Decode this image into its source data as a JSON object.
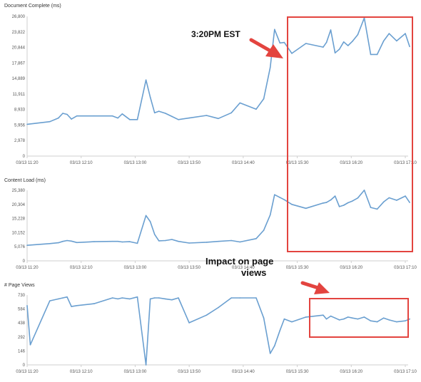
{
  "accent_color": "#6a9fd0",
  "highlight_color": "#e3443f",
  "annotations": {
    "time_callout": "3:20PM EST",
    "impact_callout_line1": "Impact on page",
    "impact_callout_line2": "views"
  },
  "chart_data": [
    {
      "type": "line",
      "title": "Document Complete (ms)",
      "x_ticks": [
        "03/13 11:20",
        "03/13 12:10",
        "03/13 13:00",
        "03/13 13:50",
        "03/13 14:40",
        "03/13 15:30",
        "03/13 16:20",
        "03/13 17:10"
      ],
      "y_ticks": [
        "0",
        "2,978",
        "5,956",
        "8,933",
        "11,911",
        "14,889",
        "17,867",
        "20,844",
        "23,822",
        "26,800"
      ],
      "ylim": [
        0,
        26800
      ],
      "grid": false,
      "x": [
        "11:20",
        "11:41",
        "11:49",
        "11:53",
        "11:57",
        "12:01",
        "12:06",
        "12:22",
        "12:39",
        "12:44",
        "12:48",
        "12:55",
        "13:02",
        "13:10",
        "13:14",
        "13:18",
        "13:22",
        "13:28",
        "13:34",
        "13:40",
        "13:50",
        "14:06",
        "14:17",
        "14:29",
        "14:37",
        "14:52",
        "14:59",
        "15:05",
        "15:09",
        "15:14",
        "15:18",
        "15:25",
        "15:38",
        "15:54",
        "15:57",
        "16:01",
        "16:05",
        "16:09",
        "16:13",
        "16:17",
        "16:21",
        "16:26",
        "16:32",
        "16:38",
        "16:44",
        "16:50",
        "16:55",
        "17:02",
        "17:10",
        "17:14"
      ],
      "values": [
        6100,
        6600,
        7300,
        8200,
        8000,
        7100,
        7700,
        7700,
        7700,
        7300,
        8100,
        7000,
        7000,
        14600,
        11300,
        8300,
        8600,
        8200,
        7600,
        7000,
        7300,
        7800,
        7200,
        8300,
        10200,
        9000,
        11000,
        17000,
        24300,
        21700,
        21800,
        19700,
        21600,
        20900,
        21800,
        24200,
        19800,
        20500,
        21900,
        21200,
        22000,
        23300,
        26500,
        19500,
        19500,
        22100,
        23500,
        22100,
        23500,
        21000
      ]
    },
    {
      "type": "line",
      "title": "Content Load (ms)",
      "x_ticks": [
        "03/13 11:20",
        "03/13 12:10",
        "03/13 13:00",
        "03/13 13:50",
        "03/13 14:40",
        "03/13 15:30",
        "03/13 16:20",
        "03/13 17:10"
      ],
      "y_ticks": [
        "0",
        "5,076",
        "10,152",
        "15,228",
        "20,304",
        "25,380"
      ],
      "ylim": [
        0,
        25380
      ],
      "grid": false,
      "x": [
        "11:20",
        "11:41",
        "11:49",
        "11:53",
        "11:57",
        "12:01",
        "12:06",
        "12:22",
        "12:39",
        "12:44",
        "12:48",
        "12:55",
        "13:02",
        "13:10",
        "13:14",
        "13:18",
        "13:22",
        "13:28",
        "13:34",
        "13:40",
        "13:50",
        "14:06",
        "14:17",
        "14:29",
        "14:37",
        "14:52",
        "14:59",
        "15:05",
        "15:09",
        "15:14",
        "15:18",
        "15:25",
        "15:38",
        "15:54",
        "15:57",
        "16:01",
        "16:05",
        "16:09",
        "16:13",
        "16:17",
        "16:21",
        "16:26",
        "16:32",
        "16:38",
        "16:44",
        "16:50",
        "16:55",
        "17:02",
        "17:10",
        "17:14"
      ],
      "values": [
        5600,
        6200,
        6500,
        7000,
        7300,
        7100,
        6600,
        6900,
        7000,
        7000,
        6800,
        6900,
        6300,
        16300,
        14100,
        9500,
        7200,
        7300,
        7700,
        7000,
        6400,
        6700,
        7000,
        7300,
        6800,
        8000,
        11000,
        16500,
        23800,
        22800,
        22000,
        20300,
        18900,
        20800,
        21000,
        21900,
        23300,
        19500,
        20000,
        20900,
        21500,
        22600,
        25400,
        19200,
        18600,
        21200,
        22700,
        21800,
        23300,
        21000
      ]
    },
    {
      "type": "line",
      "title": "# Page Views",
      "x_ticks": [
        "03/13 11:20",
        "03/13 12:10",
        "03/13 13:00",
        "03/13 13:50",
        "03/13 14:40",
        "03/13 15:30",
        "03/13 16:20",
        "03/13 17:10"
      ],
      "y_ticks": [
        "0",
        "146",
        "292",
        "438",
        "584",
        "730"
      ],
      "ylim": [
        0,
        730
      ],
      "grid": false,
      "x": [
        "11:20",
        "11:23",
        "11:41",
        "11:49",
        "11:53",
        "11:57",
        "12:01",
        "12:06",
        "12:22",
        "12:39",
        "12:44",
        "12:48",
        "12:55",
        "13:02",
        "13:10",
        "13:14",
        "13:18",
        "13:22",
        "13:28",
        "13:34",
        "13:40",
        "13:50",
        "14:06",
        "14:17",
        "14:29",
        "14:37",
        "14:52",
        "14:59",
        "15:05",
        "15:09",
        "15:14",
        "15:18",
        "15:25",
        "15:38",
        "15:54",
        "15:57",
        "16:01",
        "16:05",
        "16:09",
        "16:13",
        "16:17",
        "16:21",
        "16:26",
        "16:32",
        "16:38",
        "16:44",
        "16:50",
        "16:55",
        "17:02",
        "17:10",
        "17:14"
      ],
      "values": [
        620,
        210,
        670,
        690,
        700,
        710,
        610,
        620,
        640,
        700,
        690,
        700,
        690,
        710,
        0,
        690,
        700,
        700,
        690,
        680,
        700,
        440,
        520,
        600,
        700,
        700,
        700,
        490,
        120,
        200,
        360,
        480,
        450,
        500,
        520,
        480,
        510,
        490,
        470,
        480,
        500,
        490,
        480,
        500,
        460,
        450,
        490,
        470,
        450,
        460,
        480
      ]
    }
  ]
}
